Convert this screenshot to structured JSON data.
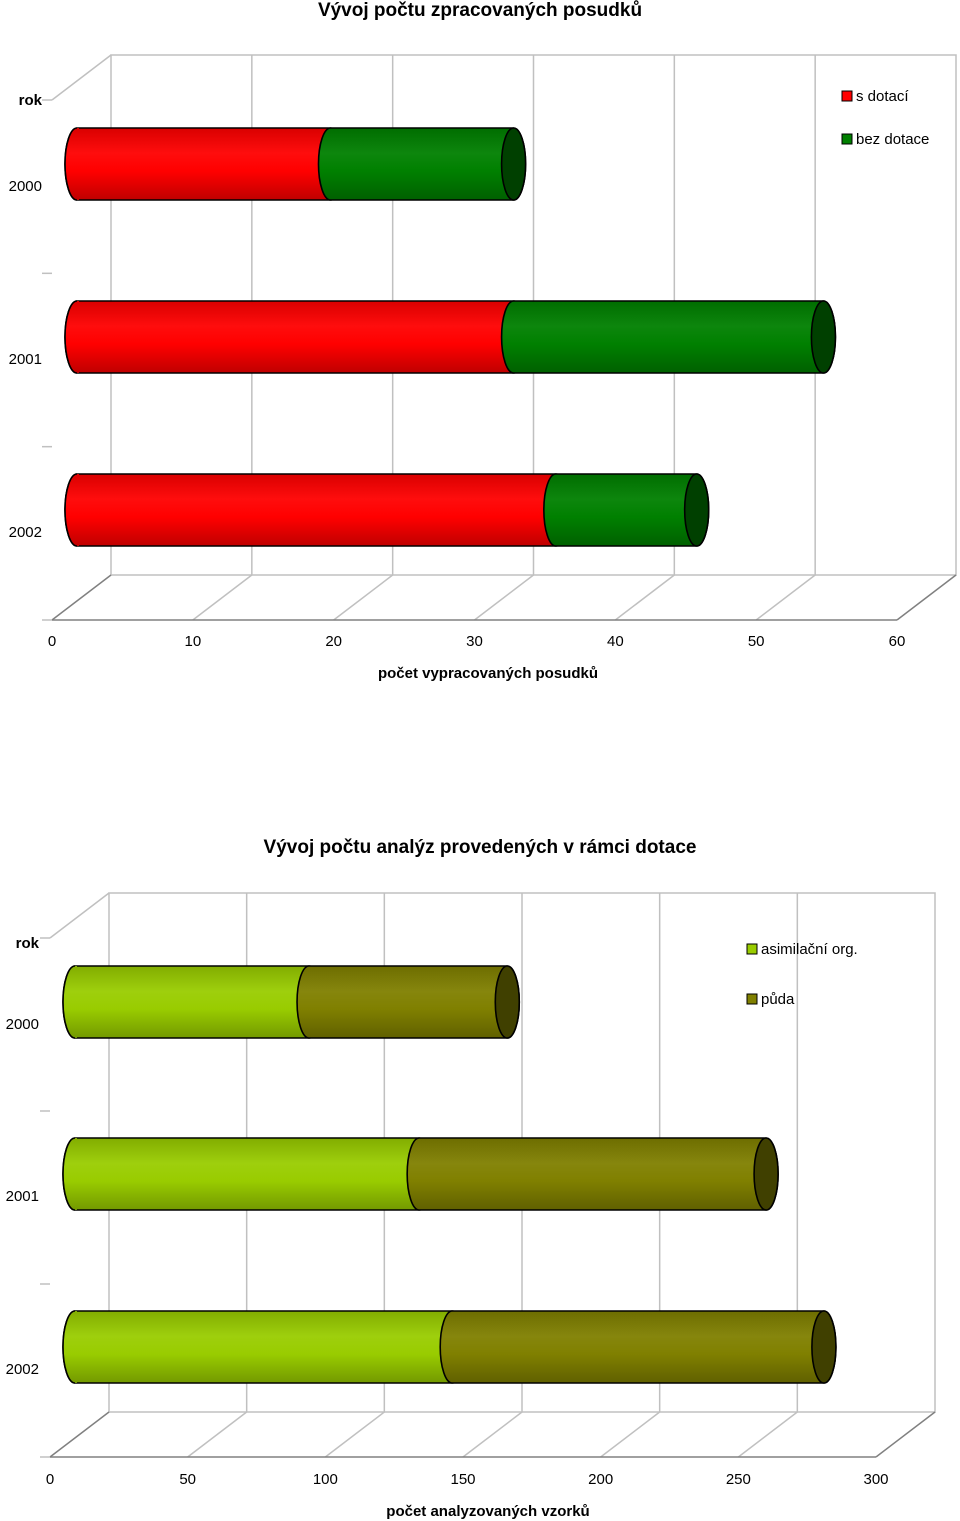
{
  "chart_data": [
    {
      "type": "bar",
      "orientation": "horizontal",
      "stacked": true,
      "style": "3d-cylinder",
      "title": "Vývoj počtu zpracovaných posudků",
      "ylabel": "rok",
      "xlabel": "počet vypracovaných posudků",
      "categories": [
        "2000",
        "2001",
        "2002"
      ],
      "xlim": [
        0,
        60
      ],
      "xticks": [
        "0",
        "10",
        "20",
        "30",
        "40",
        "50",
        "60"
      ],
      "grid": true,
      "legend_position": "top-right",
      "series": [
        {
          "name": "s dotací",
          "color": "#ff0000",
          "values": [
            18,
            31,
            34
          ]
        },
        {
          "name": "bez dotace",
          "color": "#008000",
          "values": [
            13,
            22,
            10
          ]
        }
      ]
    },
    {
      "type": "bar",
      "orientation": "horizontal",
      "stacked": true,
      "style": "3d-cylinder",
      "title": "Vývoj počtu analýz provedených v rámci dotace",
      "ylabel": "rok",
      "xlabel": "počet analyzovaných vzorků",
      "categories": [
        "2000",
        "2001",
        "2002"
      ],
      "xlim": [
        0,
        300
      ],
      "xticks": [
        "0",
        "50",
        "100",
        "150",
        "200",
        "250",
        "300"
      ],
      "grid": true,
      "legend_position": "top-right",
      "series": [
        {
          "name": "asimilační org.",
          "color": "#99cc00",
          "values": [
            85,
            125,
            137
          ]
        },
        {
          "name": "půda",
          "color": "#808000",
          "values": [
            72,
            126,
            135
          ]
        }
      ]
    }
  ]
}
